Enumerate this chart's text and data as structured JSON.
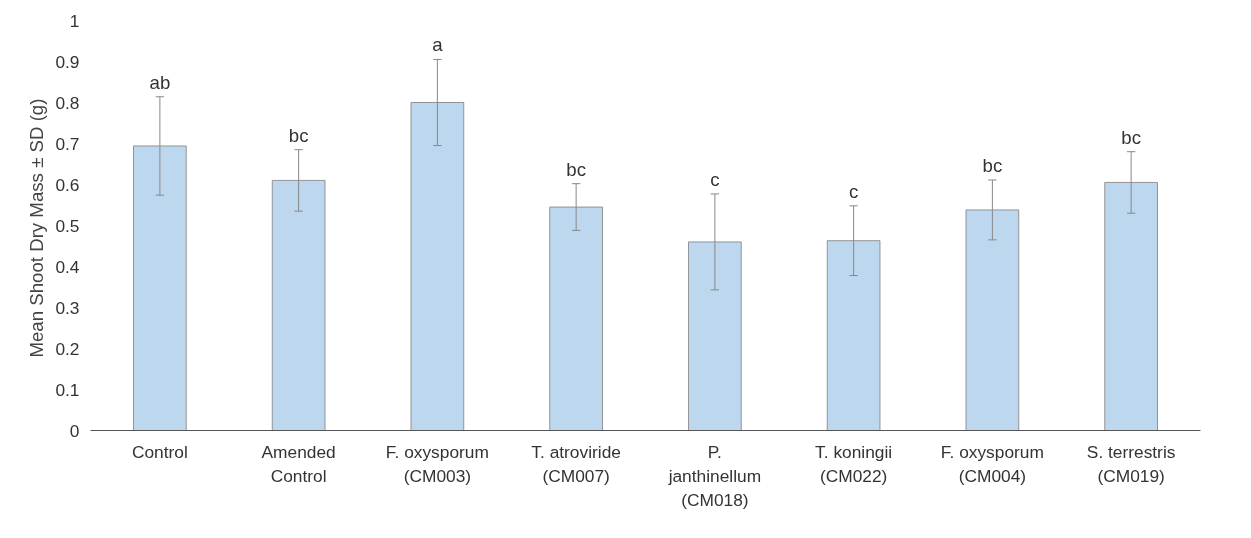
{
  "chart_data": {
    "type": "bar",
    "ylabel": "Mean Shoot Dry Mass  ± SD (g)",
    "categories": [
      "Control",
      "Amended\nControl",
      "F. oxysporum\n(CM003)",
      "T. atroviride\n(CM007)",
      "P.\njanthinellum\n(CM018)",
      "T. koningii\n(CM022)",
      "F. oxysporum\n(CM004)",
      "S. terrestris\n(CM019)"
    ],
    "values": [
      0.694,
      0.61,
      0.8,
      0.545,
      0.46,
      0.463,
      0.538,
      0.605
    ],
    "errors": [
      0.12,
      0.075,
      0.105,
      0.057,
      0.117,
      0.085,
      0.073,
      0.075
    ],
    "color": "#bdd7ee",
    "ylim": [
      0,
      1
    ],
    "yticks": [
      0,
      0.1,
      0.2,
      0.3,
      0.4,
      0.5,
      0.6,
      0.7,
      0.8,
      0.9,
      1
    ],
    "grid": false,
    "annotations": [
      "ab",
      "bc",
      "a",
      "bc",
      "c",
      "c",
      "bc",
      "bc"
    ]
  }
}
